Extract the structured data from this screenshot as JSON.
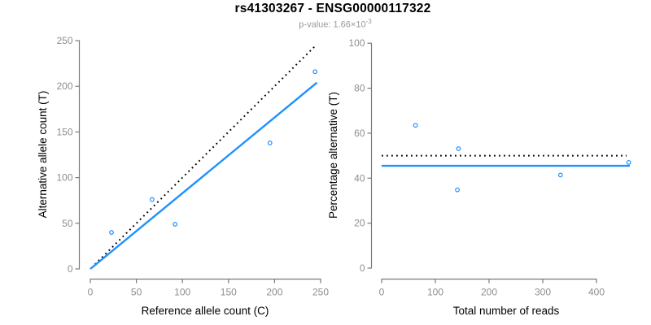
{
  "header": {
    "title": "rs41303267 - ENSG00000117322",
    "p_value_text": "p-value: 1.66×10",
    "p_value_exponent": "-3"
  },
  "chart_data": [
    {
      "type": "scatter",
      "xlabel": "Reference allele count (C)",
      "ylabel": "Alternative allele count (T)",
      "xlim": [
        0,
        250
      ],
      "ylim": [
        0,
        250
      ],
      "xticks": [
        0,
        50,
        100,
        150,
        200,
        250
      ],
      "yticks": [
        0,
        50,
        100,
        150,
        200,
        250
      ],
      "grid": false,
      "legend": false,
      "points": [
        {
          "x": 23,
          "y": 40
        },
        {
          "x": 67,
          "y": 76
        },
        {
          "x": 92,
          "y": 49
        },
        {
          "x": 195,
          "y": 138
        },
        {
          "x": 244,
          "y": 216
        }
      ],
      "lines": [
        {
          "name": "identity-line",
          "style": "dotted",
          "color": "#000000",
          "x1": 5,
          "y1": 5,
          "x2": 245,
          "y2": 245
        },
        {
          "name": "fit-line",
          "style": "solid",
          "color": "#1E90FF",
          "x1": 0,
          "y1": 0,
          "x2": 246,
          "y2": 204
        }
      ]
    },
    {
      "type": "scatter",
      "xlabel": "Total number of reads",
      "ylabel": "Percentage alternative (T)",
      "xlim": [
        0,
        463
      ],
      "ylim": [
        0,
        100
      ],
      "xticks": [
        0,
        100,
        200,
        300,
        400
      ],
      "yticks": [
        0,
        20,
        40,
        60,
        80,
        100
      ],
      "grid": false,
      "legend": false,
      "points": [
        {
          "x": 63,
          "y": 63.5
        },
        {
          "x": 143,
          "y": 53.1
        },
        {
          "x": 141,
          "y": 34.8
        },
        {
          "x": 333,
          "y": 41.4
        },
        {
          "x": 460,
          "y": 47.0
        }
      ],
      "lines": [
        {
          "name": "expected-50pct-line",
          "style": "dotted",
          "color": "#000000",
          "x1": 0,
          "y1": 50,
          "x2": 456,
          "y2": 50
        },
        {
          "name": "mean-pct-line",
          "style": "solid",
          "color": "#1E90FF",
          "x1": 0,
          "y1": 45.5,
          "x2": 462,
          "y2": 45.5
        }
      ]
    }
  ],
  "colors": {
    "accent": "#1E90FF",
    "dashed": "#000000",
    "axis": "#7a7a7a",
    "tick_label": "#8e8e8e",
    "title": "#000000",
    "subtitle": "#9a9a9a"
  }
}
